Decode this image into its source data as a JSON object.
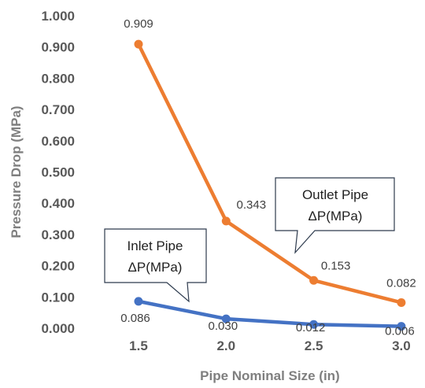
{
  "chart_data": {
    "type": "line",
    "xlabel": "Pipe Nominal Size (in)",
    "ylabel": "Pressure Drop (MPa)",
    "categories": [
      "1.5",
      "2.0",
      "2.5",
      "3.0"
    ],
    "ylim": [
      0,
      1
    ],
    "yticks": [
      "0.000",
      "0.100",
      "0.200",
      "0.300",
      "0.400",
      "0.500",
      "0.600",
      "0.700",
      "0.800",
      "0.900",
      "1.000"
    ],
    "grid": false,
    "series": [
      {
        "name": "Inlet Pipe ΔP(MPa)",
        "color": "#4472c4",
        "values": [
          0.086,
          0.03,
          0.012,
          0.006
        ],
        "labels": [
          "0.086",
          "0.030",
          "0.012",
          "0.006"
        ]
      },
      {
        "name": "Outlet Pipe ΔP(MPa)",
        "color": "#ed7d31",
        "values": [
          0.909,
          0.343,
          0.153,
          0.082
        ],
        "labels": [
          "0.909",
          "0.343",
          "0.153",
          "0.082"
        ]
      }
    ],
    "callouts": [
      {
        "lines": [
          "Inlet Pipe",
          "ΔP(MPa)"
        ]
      },
      {
        "lines": [
          "Outlet Pipe",
          "ΔP(MPa)"
        ]
      }
    ]
  }
}
